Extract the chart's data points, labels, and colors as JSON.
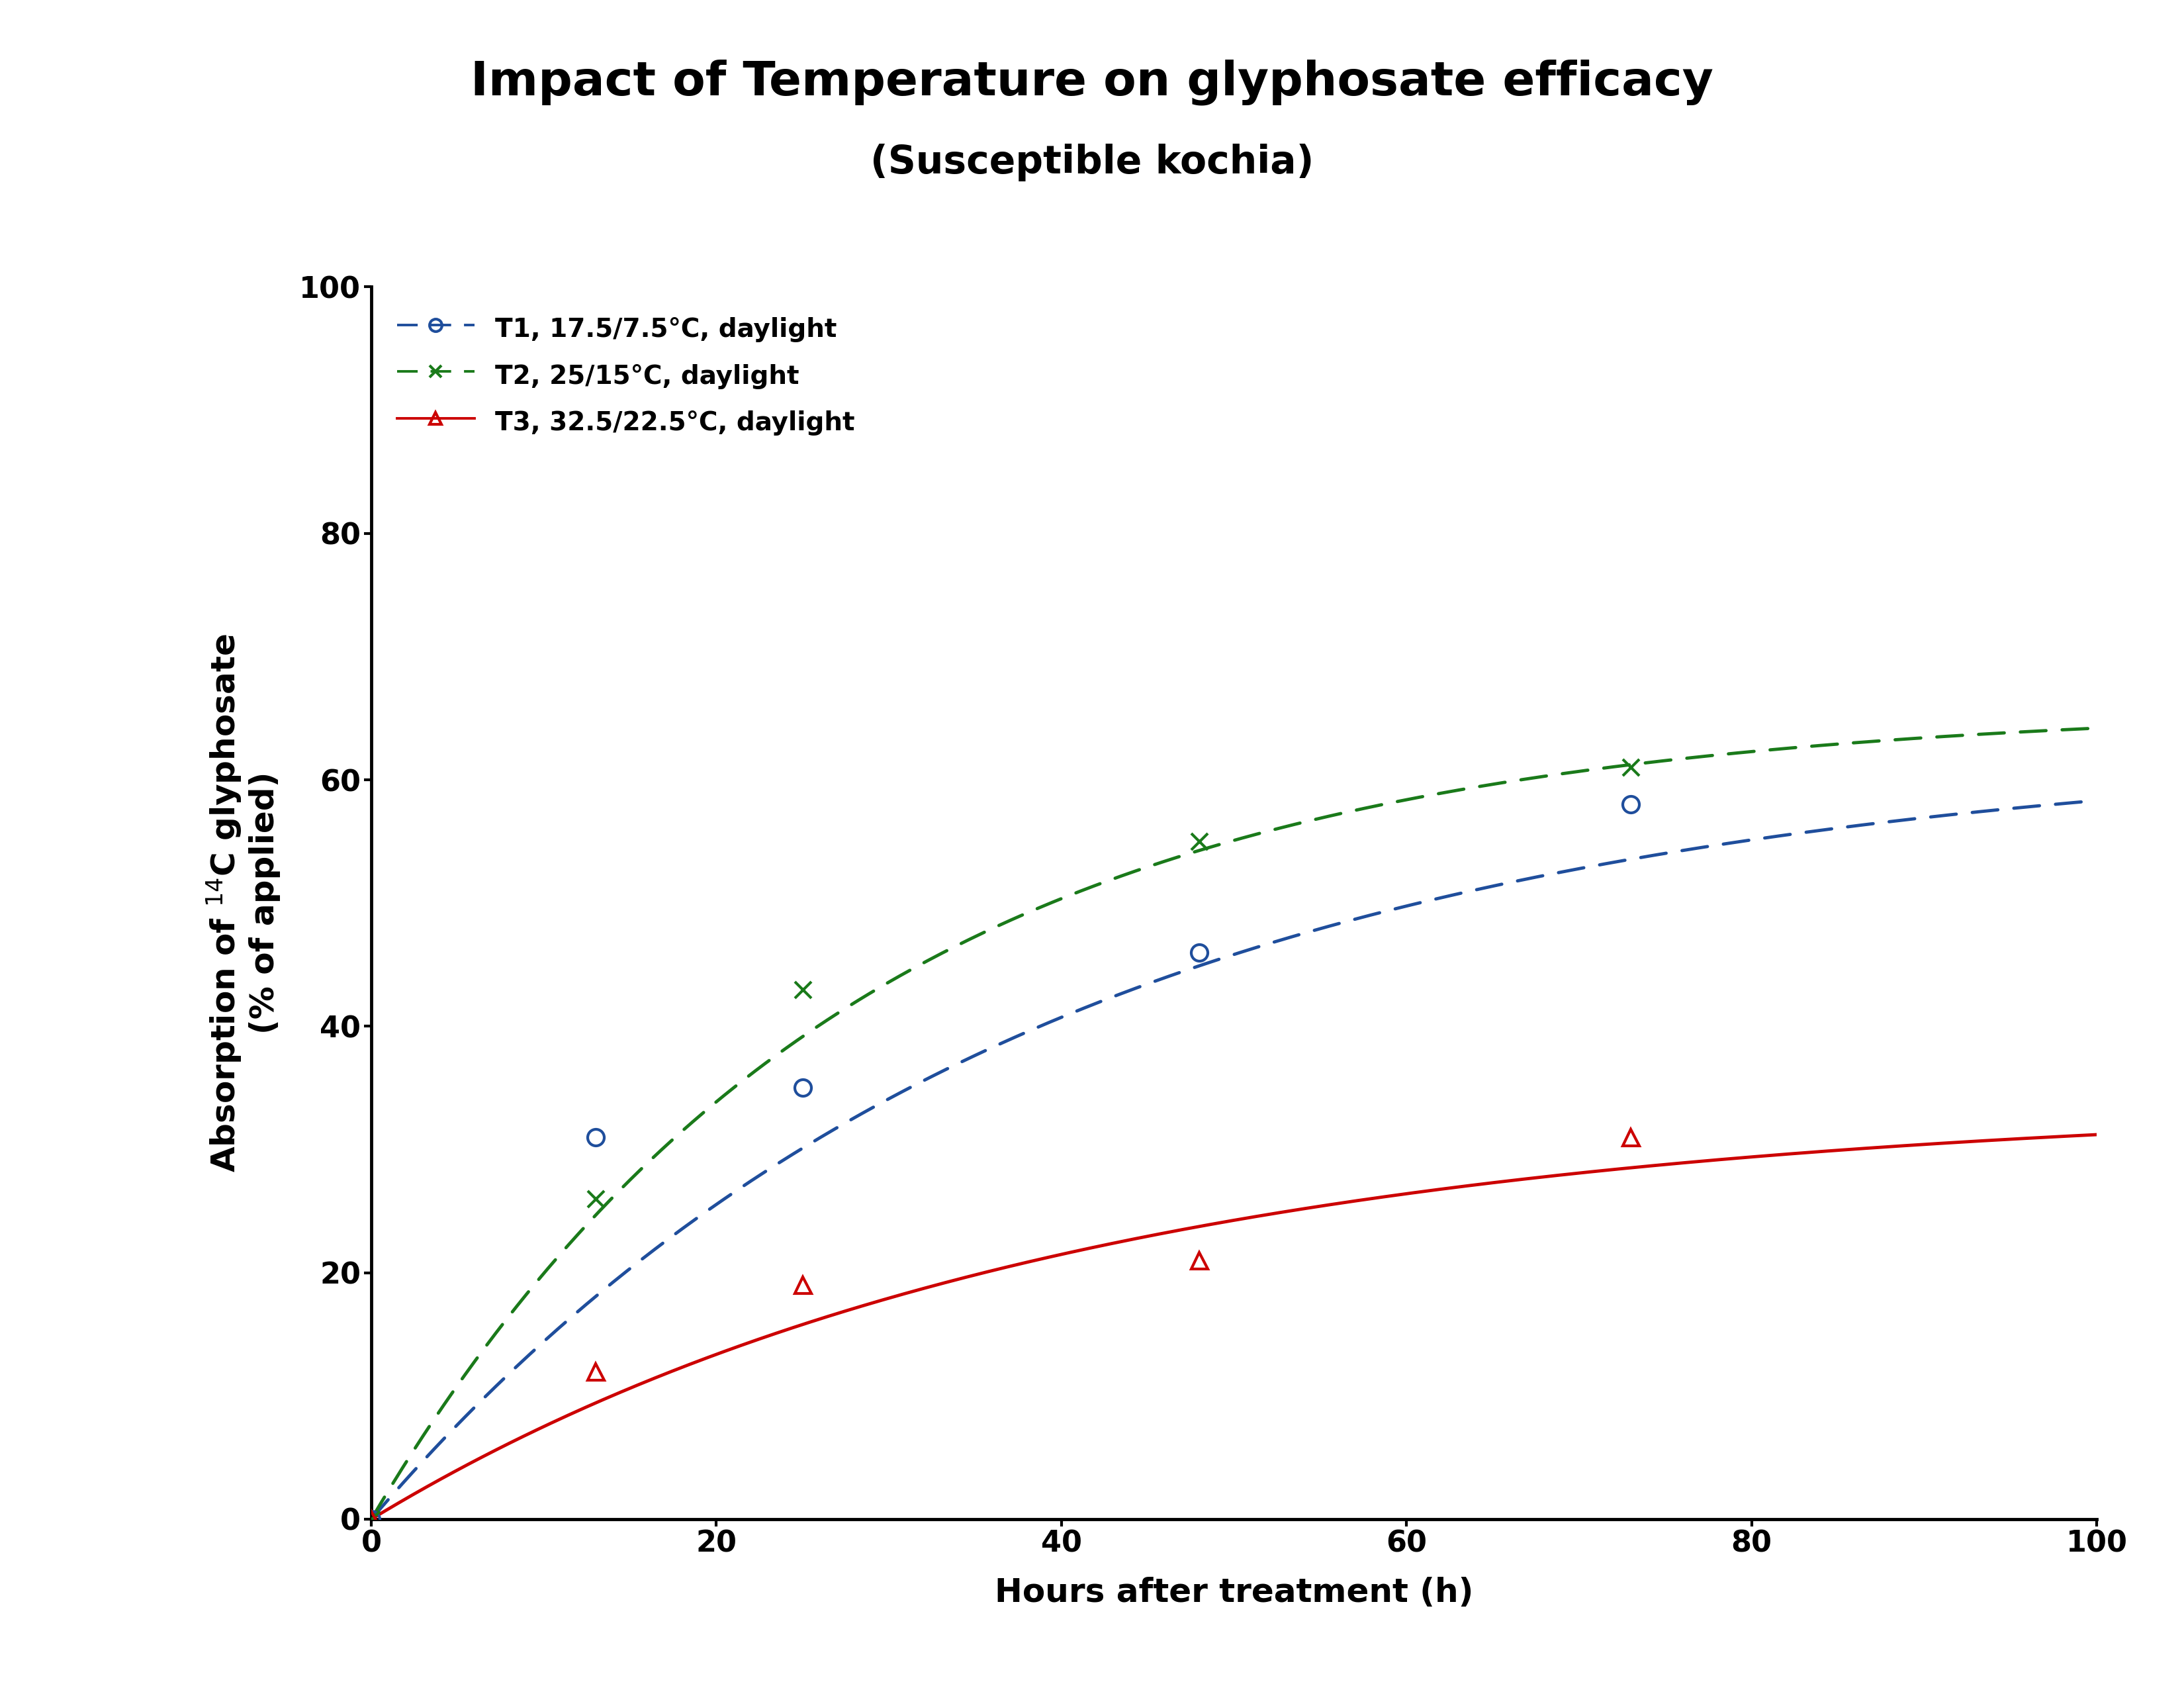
{
  "title_line1": "Impact of Temperature on glyphosate efficacy",
  "title_line2": "(Susceptible kochia)",
  "xlabel": "Hours after treatment (h)",
  "xlim": [
    0,
    100
  ],
  "ylim": [
    0,
    100
  ],
  "xticks": [
    0,
    20,
    40,
    60,
    80,
    100
  ],
  "yticks": [
    0,
    20,
    40,
    60,
    80,
    100
  ],
  "series": [
    {
      "label": "T1, 17.5/7.5°C, daylight",
      "color": "#1f4e9c",
      "linestyle": "dashed",
      "marker": "o",
      "marker_facecolor": "none",
      "linewidth": 3.5,
      "markersize": 18,
      "data_x": [
        0,
        13,
        25,
        48,
        73
      ],
      "data_y": [
        0,
        31,
        35,
        46,
        58
      ],
      "curve_params": {
        "a": 63,
        "b": 0.026
      }
    },
    {
      "label": "T2, 25/15°C, daylight",
      "color": "#1a7a1a",
      "linestyle": "dashed",
      "marker": "x",
      "marker_facecolor": "#1a7a1a",
      "linewidth": 3.5,
      "markersize": 18,
      "data_x": [
        0,
        13,
        25,
        48,
        73
      ],
      "data_y": [
        0,
        26,
        43,
        55,
        61
      ],
      "curve_params": {
        "a": 66,
        "b": 0.036
      }
    },
    {
      "label": "T3, 32.5/22.5°C, daylight",
      "color": "#cc0000",
      "linestyle": "solid",
      "marker": "^",
      "marker_facecolor": "none",
      "linewidth": 3.5,
      "markersize": 18,
      "data_x": [
        0,
        13,
        25,
        48,
        73
      ],
      "data_y": [
        0,
        12,
        19,
        21,
        31
      ],
      "curve_params": {
        "a": 34,
        "b": 0.025
      }
    }
  ],
  "background_color": "#ffffff",
  "title_fontsize": 52,
  "subtitle_fontsize": 42,
  "axis_label_fontsize": 36,
  "tick_fontsize": 32,
  "legend_fontsize": 28,
  "markeredgewidth": 3.0
}
